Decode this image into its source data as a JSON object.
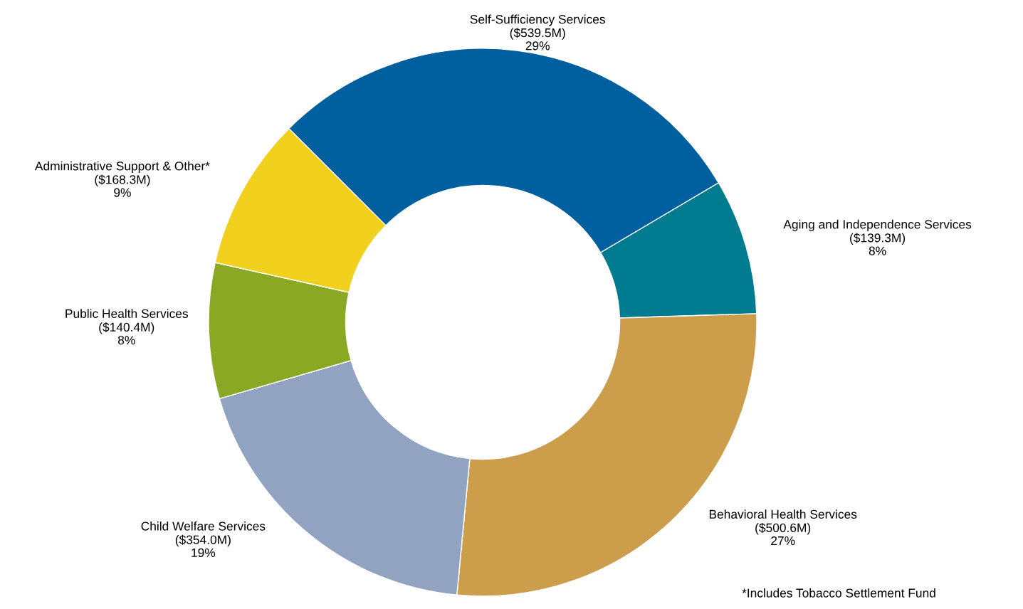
{
  "chart_data": {
    "type": "donut",
    "categories": [
      "Self-Sufficiency Services\n($539.5M)",
      "Aging and Independence Services\n($139.3M)",
      "Behavioral Health Services\n($500.6M)",
      "Child Welfare Services\n($354.0M)",
      "Public Health Services\n($140.4M)",
      "Administrative Support & Other*\n($168.3M)"
    ],
    "values": [
      29,
      8,
      27,
      19,
      8,
      9
    ],
    "value_labels": [
      "29%",
      "8%",
      "27%",
      "19%",
      "8%",
      "9%"
    ],
    "colors": [
      "#005f9e",
      "#007b8f",
      "#cc9e4b",
      "#91a3c0",
      "#8aa823",
      "#f2d01e"
    ],
    "annotations": [
      "*Includes Tobacco Settlement Fund"
    ]
  }
}
